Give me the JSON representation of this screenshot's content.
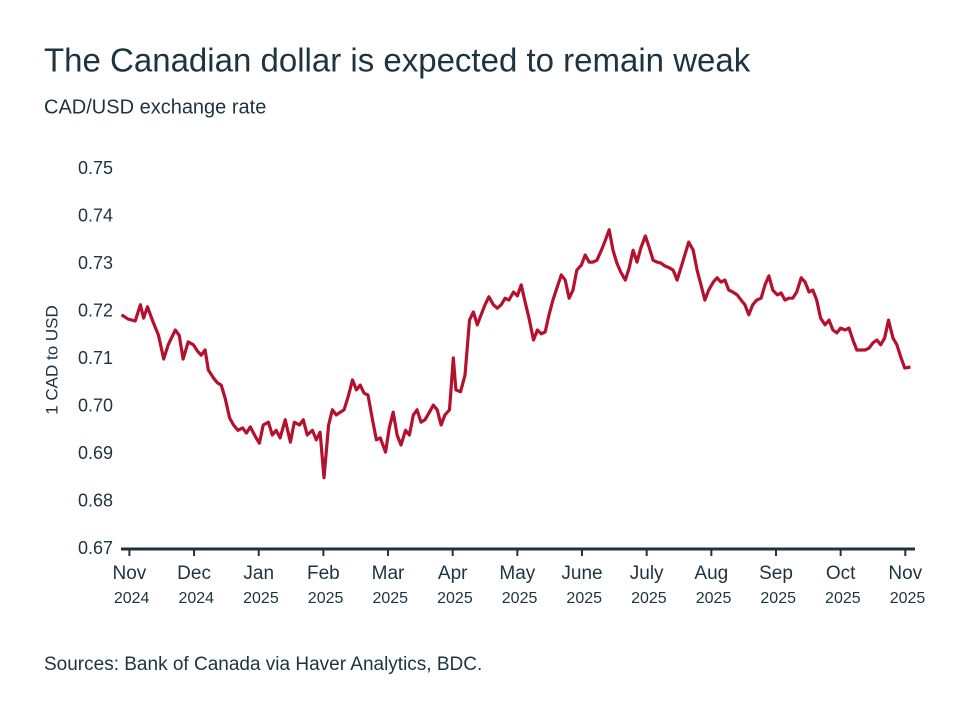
{
  "chart_data": {
    "type": "line",
    "title": "The Canadian dollar is expected to remain weak",
    "subtitle": "CAD/USD exchange rate",
    "y_label": "1 CAD to USD",
    "source": "Sources: Bank of Canada via Haver Analytics, BDC.",
    "xlim": [
      -0.13,
      12.15
    ],
    "xticks": [
      {
        "value": 0,
        "label": "Nov 2024"
      },
      {
        "value": 1,
        "label": "Dec 2024"
      },
      {
        "value": 2,
        "label": "Jan 2025"
      },
      {
        "value": 3,
        "label": "Feb 2025"
      },
      {
        "value": 4,
        "label": "Mar 2025"
      },
      {
        "value": 5,
        "label": "Apr 2025"
      },
      {
        "value": 6,
        "label": "May 2025"
      },
      {
        "value": 7,
        "label": "June 2025"
      },
      {
        "value": 8,
        "label": "July 2025"
      },
      {
        "value": 9,
        "label": "Aug 2025"
      },
      {
        "value": 10,
        "label": "Sep 2025"
      },
      {
        "value": 11,
        "label": "Oct 2025"
      },
      {
        "value": 12,
        "label": "Nov 2025"
      }
    ],
    "ylim": [
      0.67,
      0.75
    ],
    "yticks": [
      {
        "value": 0.67,
        "label": "0.67"
      },
      {
        "value": 0.68,
        "label": "0.68"
      },
      {
        "value": 0.69,
        "label": "0.69"
      },
      {
        "value": 0.7,
        "label": "0.70"
      },
      {
        "value": 0.71,
        "label": "0.71"
      },
      {
        "value": 0.72,
        "label": "0.72"
      },
      {
        "value": 0.73,
        "label": "0.73"
      },
      {
        "value": 0.74,
        "label": "0.74"
      },
      {
        "value": 0.75,
        "label": "0.75"
      }
    ],
    "x": [
      -0.12,
      -0.02,
      0.09,
      0.17,
      0.22,
      0.28,
      0.36,
      0.45,
      0.53,
      0.6,
      0.65,
      0.71,
      0.77,
      0.83,
      0.91,
      0.99,
      1.05,
      1.11,
      1.17,
      1.22,
      1.3,
      1.36,
      1.42,
      1.48,
      1.55,
      1.61,
      1.68,
      1.75,
      1.81,
      1.87,
      1.95,
      2.01,
      2.07,
      2.15,
      2.21,
      2.27,
      2.33,
      2.41,
      2.49,
      2.55,
      2.63,
      2.69,
      2.75,
      2.83,
      2.89,
      2.95,
      3.01,
      3.08,
      3.14,
      3.2,
      3.26,
      3.32,
      3.39,
      3.45,
      3.51,
      3.57,
      3.63,
      3.69,
      3.76,
      3.82,
      3.88,
      3.96,
      4.02,
      4.08,
      4.14,
      4.2,
      4.27,
      4.33,
      4.39,
      4.45,
      4.51,
      4.57,
      4.64,
      4.7,
      4.76,
      4.82,
      4.88,
      4.95,
      5.01,
      5.05,
      5.12,
      5.19,
      5.26,
      5.32,
      5.38,
      5.44,
      5.5,
      5.56,
      5.63,
      5.69,
      5.75,
      5.81,
      5.87,
      5.94,
      6.0,
      6.06,
      6.12,
      6.18,
      6.25,
      6.31,
      6.37,
      6.43,
      6.49,
      6.55,
      6.61,
      6.68,
      6.74,
      6.8,
      6.86,
      6.92,
      6.99,
      7.05,
      7.11,
      7.17,
      7.23,
      7.3,
      7.36,
      7.42,
      7.48,
      7.54,
      7.6,
      7.67,
      7.73,
      7.79,
      7.85,
      7.91,
      7.98,
      8.04,
      8.1,
      8.16,
      8.22,
      8.28,
      8.35,
      8.41,
      8.47,
      8.53,
      8.59,
      8.65,
      8.72,
      8.78,
      8.84,
      8.9,
      8.96,
      9.03,
      9.09,
      9.15,
      9.21,
      9.27,
      9.33,
      9.4,
      9.46,
      9.52,
      9.58,
      9.64,
      9.7,
      9.77,
      9.83,
      9.89,
      9.95,
      10.02,
      10.08,
      10.14,
      10.2,
      10.26,
      10.32,
      10.39,
      10.45,
      10.51,
      10.57,
      10.63,
      10.69,
      10.76,
      10.82,
      10.88,
      10.94,
      11.0,
      11.07,
      11.13,
      11.19,
      11.25,
      11.31,
      11.38,
      11.44,
      11.5,
      11.56,
      11.62,
      11.68,
      11.74,
      11.81,
      11.87,
      11.93,
      11.99,
      12.08
    ],
    "series": [
      {
        "name": "CAD/USD",
        "color": "#b5112e",
        "values": [
          0.7193,
          0.7184,
          0.718,
          0.7214,
          0.7186,
          0.721,
          0.718,
          0.715,
          0.71,
          0.713,
          0.7144,
          0.7161,
          0.715,
          0.71,
          0.7136,
          0.713,
          0.7117,
          0.7108,
          0.7119,
          0.7077,
          0.706,
          0.705,
          0.7045,
          0.7018,
          0.6976,
          0.6961,
          0.695,
          0.6955,
          0.6944,
          0.6957,
          0.6936,
          0.6923,
          0.6961,
          0.6967,
          0.694,
          0.695,
          0.6934,
          0.6972,
          0.6925,
          0.6967,
          0.6961,
          0.6972,
          0.694,
          0.695,
          0.693,
          0.6946,
          0.685,
          0.6961,
          0.6993,
          0.6982,
          0.6988,
          0.6993,
          0.7024,
          0.7056,
          0.7035,
          0.7045,
          0.7028,
          0.7024,
          0.6972,
          0.693,
          0.6934,
          0.6904,
          0.6955,
          0.6988,
          0.694,
          0.6919,
          0.695,
          0.694,
          0.6982,
          0.6993,
          0.6967,
          0.6972,
          0.6988,
          0.7003,
          0.6993,
          0.6961,
          0.6982,
          0.6993,
          0.7102,
          0.7035,
          0.7031,
          0.7066,
          0.7182,
          0.7199,
          0.7172,
          0.7193,
          0.7214,
          0.7231,
          0.7214,
          0.7207,
          0.7214,
          0.7228,
          0.7224,
          0.7241,
          0.7233,
          0.7256,
          0.722,
          0.7186,
          0.714,
          0.7161,
          0.7153,
          0.7157,
          0.7193,
          0.7224,
          0.7249,
          0.7277,
          0.7266,
          0.7228,
          0.7245,
          0.7287,
          0.7298,
          0.7319,
          0.7304,
          0.7304,
          0.7308,
          0.7329,
          0.735,
          0.7372,
          0.7329,
          0.7302,
          0.7283,
          0.7266,
          0.7292,
          0.7329,
          0.7304,
          0.7334,
          0.7359,
          0.7334,
          0.7308,
          0.7304,
          0.7302,
          0.7296,
          0.7292,
          0.7287,
          0.7266,
          0.7292,
          0.7319,
          0.7346,
          0.7329,
          0.7287,
          0.7256,
          0.7224,
          0.7245,
          0.7262,
          0.7271,
          0.7262,
          0.7266,
          0.7245,
          0.7241,
          0.7235,
          0.7224,
          0.7214,
          0.7193,
          0.7214,
          0.7224,
          0.7228,
          0.7256,
          0.7275,
          0.7245,
          0.7235,
          0.7239,
          0.7224,
          0.7228,
          0.7228,
          0.7241,
          0.7271,
          0.7262,
          0.7241,
          0.7245,
          0.7224,
          0.7186,
          0.7172,
          0.7182,
          0.7161,
          0.7155,
          0.7165,
          0.7161,
          0.7165,
          0.714,
          0.7119,
          0.7119,
          0.7119,
          0.7123,
          0.7134,
          0.714,
          0.713,
          0.7144,
          0.7182,
          0.7144,
          0.713,
          0.7104,
          0.7081,
          0.7083
        ]
      }
    ]
  }
}
